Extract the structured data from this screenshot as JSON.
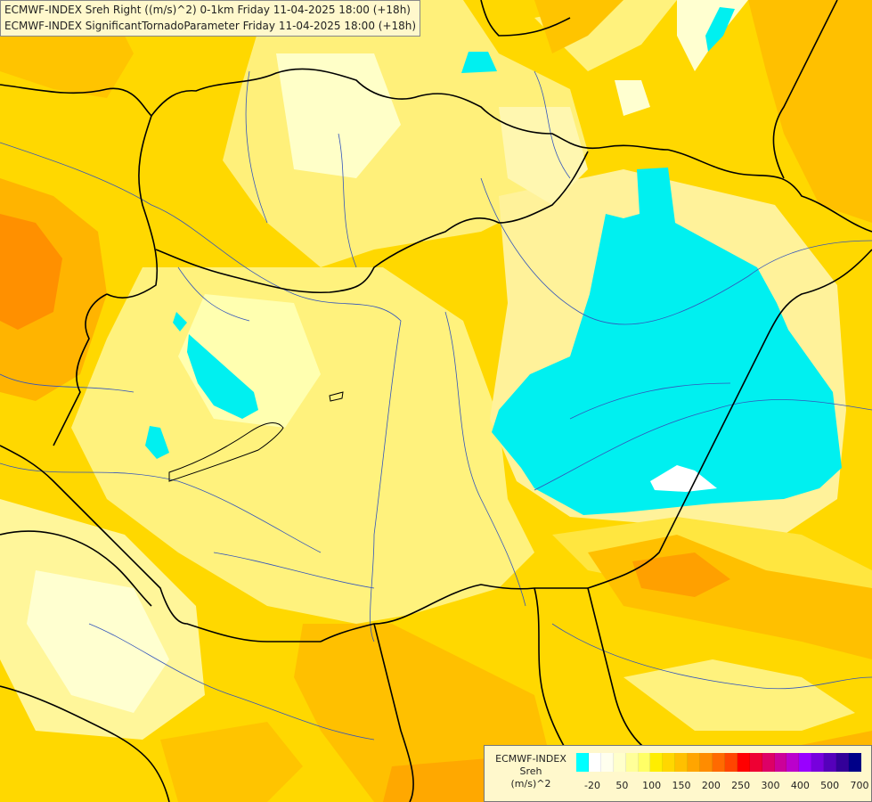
{
  "map": {
    "title_line1": "ECMWF-INDEX Sreh Right ((m/s)^2) 0-1km Friday 11-04-2025 18:00 (+18h)",
    "title_line2": "ECMWF-INDEX SignificantTornadoParameter Friday 11-04-2025 18:00 (+18h)"
  },
  "legend": {
    "line1": "ECMWF-INDEX",
    "line2": "Sreh",
    "line3": "(m/s)^2",
    "colors": [
      "#00ffff",
      "#ffffff",
      "#ffffee",
      "#ffffcc",
      "#ffff99",
      "#ffff66",
      "#ffee00",
      "#ffd700",
      "#ffc000",
      "#ffa500",
      "#ff8c00",
      "#ff6a00",
      "#ff4500",
      "#ff0000",
      "#ee0033",
      "#dd0066",
      "#cc0099",
      "#bb00cc",
      "#9900ff",
      "#7700dd",
      "#5500bb",
      "#330099",
      "#000088"
    ],
    "tick_labels": [
      "-20",
      "50",
      "100",
      "150",
      "200",
      "250",
      "300",
      "400",
      "500",
      "700"
    ]
  }
}
